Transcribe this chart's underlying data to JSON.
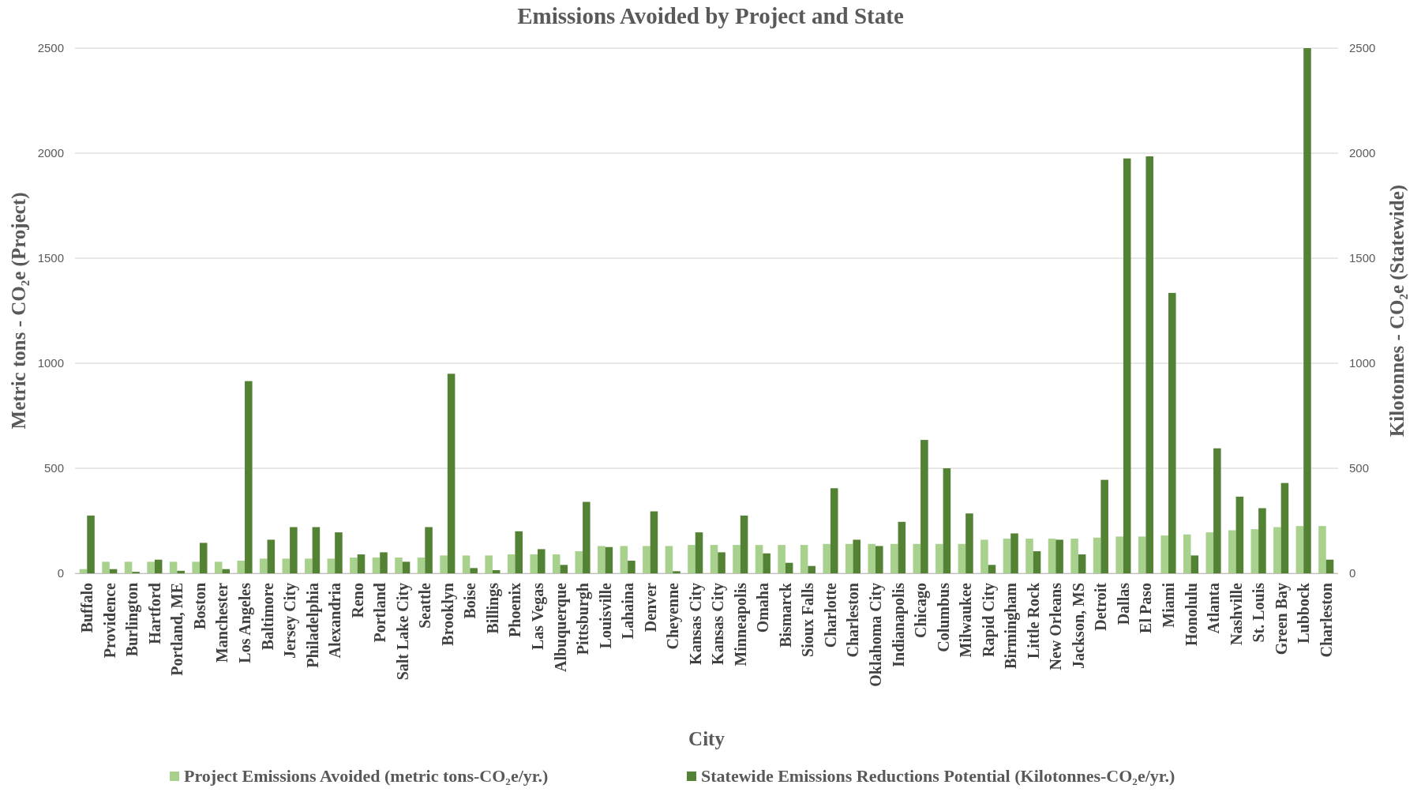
{
  "chart_data": {
    "type": "bar",
    "title": "Emissions Avoided by Project and State",
    "xlabel": "City",
    "ylabel": "Metric tons - CO₂e (Project)",
    "y2label": "Kilotonnes - CO₂e (Statewide)",
    "categories": [
      "Buffalo",
      "Providence",
      "Burlington",
      "Hartford",
      "Portland, ME",
      "Boston",
      "Manchester",
      "Los Angeles",
      "Baltimore",
      "Jersey City",
      "Philadelphia",
      "Alexandria",
      "Reno",
      "Portland",
      "Salt Lake City",
      "Seattle",
      "Brooklyn",
      "Boise",
      "Billings",
      "Phoenix",
      "Las Vegas",
      "Albuquerque",
      "Pittsburgh",
      "Louisville",
      "Lahaina",
      "Denver",
      "Cheyenne",
      "Kansas City",
      "Kansas City",
      "Minneapolis",
      "Omaha",
      "Bismarck",
      "Sioux Falls",
      "Charlotte",
      "Charleston",
      "Oklahoma City",
      "Indianapolis",
      "Chicago",
      "Columbus",
      "Milwaukee",
      "Rapid City",
      "Birmingham",
      "Little Rock",
      "New Orleans",
      "Jackson, MS",
      "Detroit",
      "Dallas",
      "El Paso",
      "Miami",
      "Honolulu",
      "Atlanta",
      "Nashville",
      "St. Louis",
      "Green Bay",
      "Lubbock",
      "Charleston"
    ],
    "series": [
      {
        "name": "Project Emissions Avoided (metric tons-CO₂e/yr.)",
        "color": "#a9d18e",
        "values": [
          20,
          55,
          55,
          55,
          55,
          55,
          55,
          60,
          70,
          70,
          70,
          70,
          75,
          75,
          75,
          75,
          85,
          85,
          85,
          90,
          90,
          90,
          105,
          130,
          130,
          130,
          130,
          135,
          135,
          135,
          135,
          135,
          135,
          140,
          140,
          140,
          140,
          140,
          140,
          140,
          160,
          165,
          165,
          165,
          165,
          170,
          175,
          175,
          180,
          185,
          195,
          205,
          210,
          220,
          225,
          225
        ]
      },
      {
        "name": "Statewide Emissions Reductions Potential (Kilotonnes-CO₂e/yr.)",
        "color": "#548235",
        "axis": "y2",
        "values": [
          275,
          20,
          7,
          65,
          12,
          145,
          20,
          915,
          160,
          220,
          220,
          195,
          90,
          100,
          55,
          220,
          950,
          25,
          15,
          200,
          115,
          40,
          340,
          125,
          60,
          295,
          10,
          195,
          100,
          275,
          95,
          50,
          35,
          405,
          160,
          130,
          245,
          635,
          500,
          285,
          40,
          190,
          105,
          160,
          90,
          445,
          1975,
          1985,
          1335,
          85,
          595,
          365,
          310,
          430,
          2500,
          65
        ]
      }
    ],
    "ylim": [
      0,
      2500
    ],
    "yticks": [
      0,
      500,
      1000,
      1500,
      2000,
      2500
    ],
    "y2lim": [
      0,
      2500
    ],
    "y2ticks": [
      0,
      500,
      1000,
      1500,
      2000,
      2500
    ],
    "grid": "y",
    "legend": "bottom"
  }
}
